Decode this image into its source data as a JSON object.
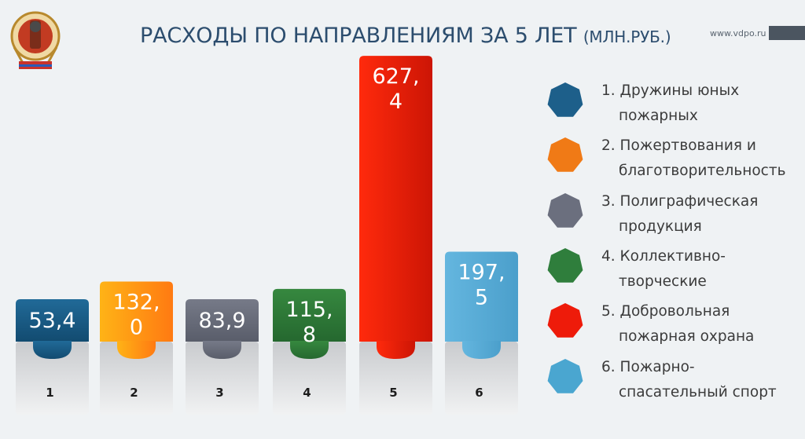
{
  "header": {
    "title_main": "РАСХОДЫ ПО НАПРАВЛЕНИЯМ ЗА 5 ЛЕТ",
    "title_units": "(МЛН.РУБ.)",
    "website": "www.vdpo.ru"
  },
  "chart_data": {
    "type": "bar",
    "title": "РАСХОДЫ ПО НАПРАВЛЕНИЯМ ЗА 5 ЛЕТ (МЛН.РУБ.)",
    "categories": [
      "1",
      "2",
      "3",
      "4",
      "5",
      "6"
    ],
    "values": [
      53.4,
      132.0,
      83.9,
      115.8,
      627.4,
      197.5
    ],
    "value_labels": [
      [
        "53,4"
      ],
      [
        "132,",
        "0"
      ],
      [
        "83,9"
      ],
      [
        "115,",
        "8"
      ],
      [
        "627,",
        "4"
      ],
      [
        "197,",
        "5"
      ]
    ],
    "ylabel": "",
    "xlabel": "",
    "grid": false,
    "legend_position": "right",
    "colors": [
      "#1d5f8a",
      "#ff8a1a",
      "#6b6f7e",
      "#2f7e3c",
      "#ee1b0a",
      "#5eb3dc"
    ]
  },
  "legend": [
    {
      "line1": "1. Дружины юных",
      "line2": "пожарных",
      "color": "#1d5f8a"
    },
    {
      "line1": "2. Пожертвования и",
      "line2": "благотворительность",
      "color": "#f07a16"
    },
    {
      "line1": "3. Полиграфическая",
      "line2": "продукция",
      "color": "#6b6f7e"
    },
    {
      "line1": "4. Коллективно-",
      "line2": "творческие",
      "color": "#2f7e3c"
    },
    {
      "line1": "5. Добровольная",
      "line2": "пожарная охрана",
      "color": "#ee1b0a"
    },
    {
      "line1": "6. Пожарно-",
      "line2": "спасательный спорт",
      "color": "#4aa6d0"
    }
  ]
}
